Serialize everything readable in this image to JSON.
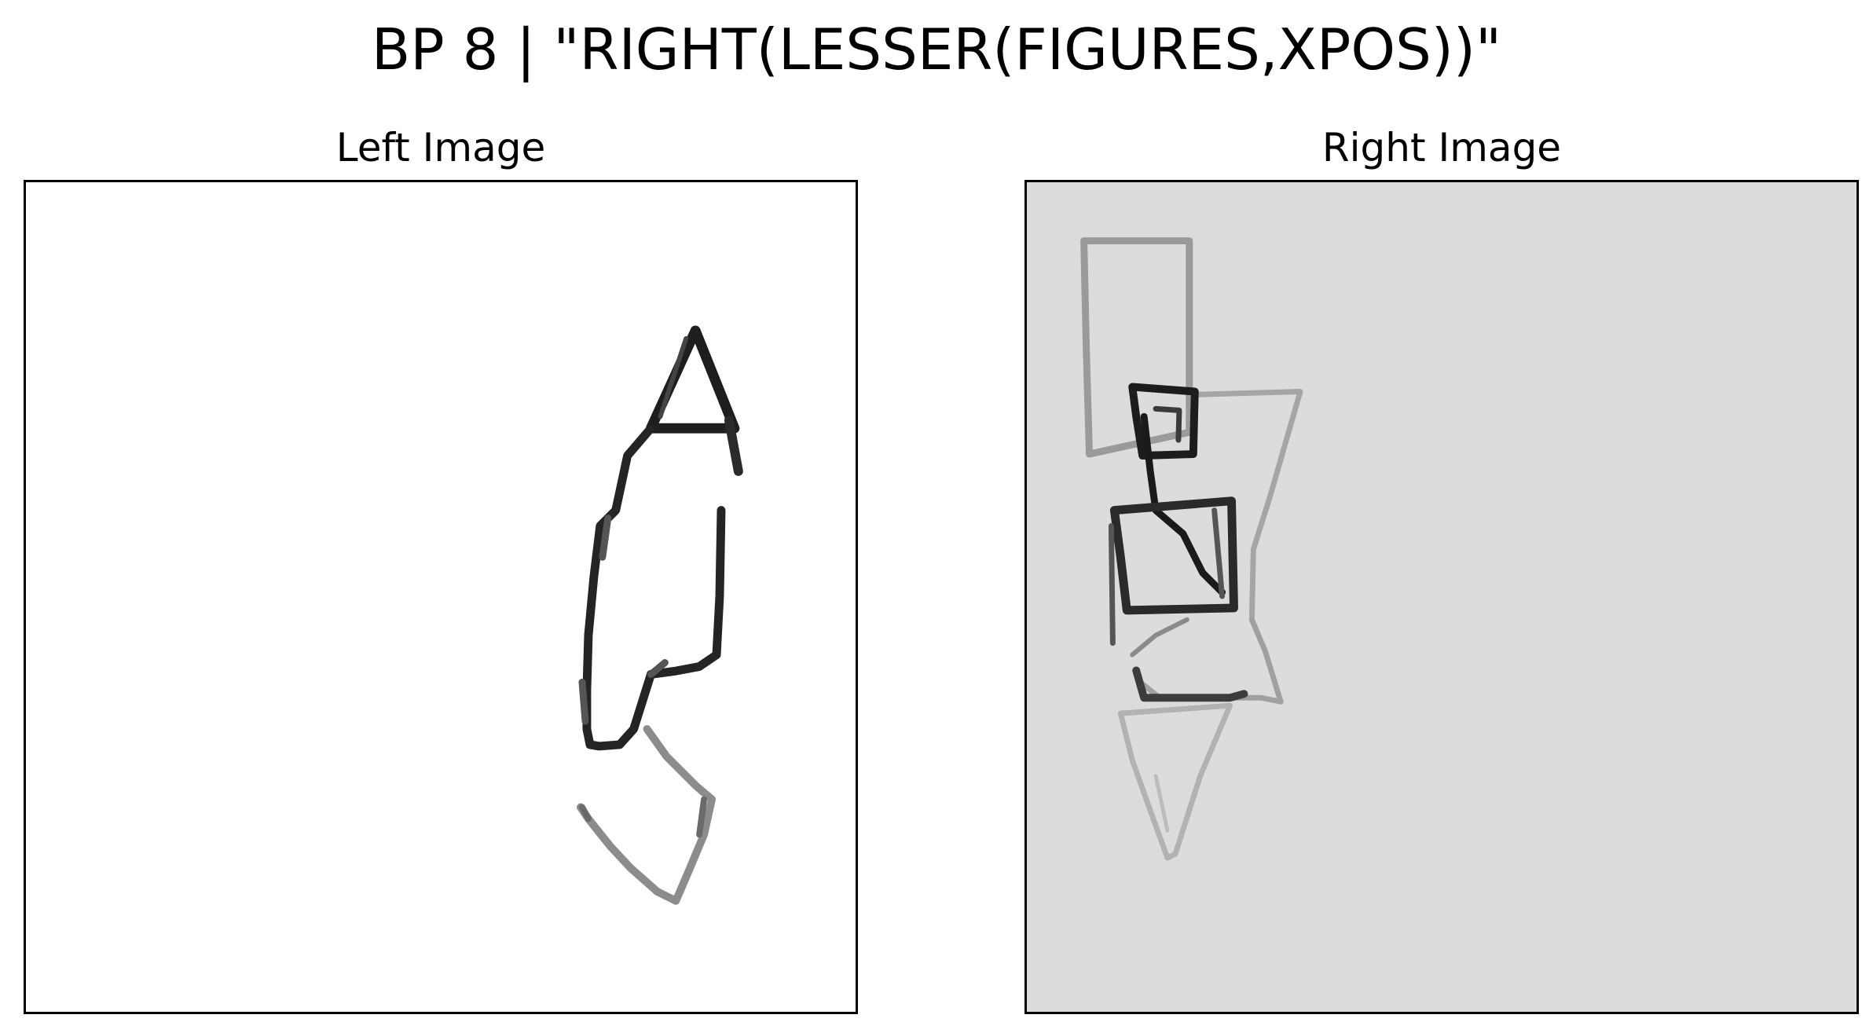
{
  "figure": {
    "title": "BP 8 | \"RIGHT(LESSER(FIGURES,XPOS))\""
  },
  "panels": {
    "left": {
      "title": "Left Image",
      "background": "#ffffff"
    },
    "right": {
      "title": "Right Image",
      "background": "#dcdcdc"
    }
  },
  "colors": {
    "ink_dark": "#1a1a1a",
    "ink_mid": "#555555",
    "ink_light": "#9a9a9a",
    "border": "#000000"
  }
}
